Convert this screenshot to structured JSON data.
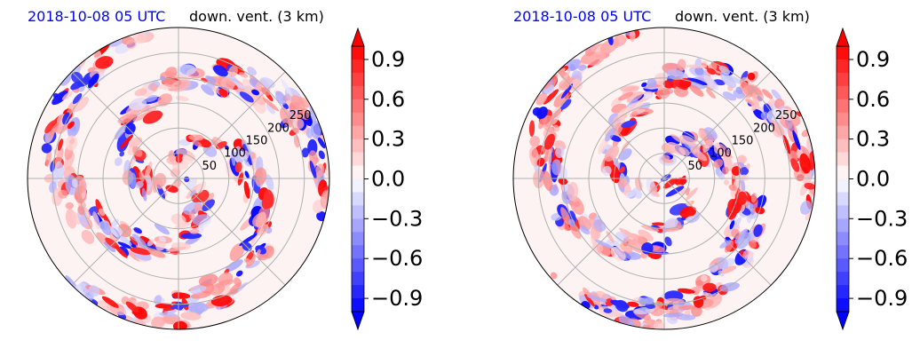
{
  "chart_data": [
    {
      "type": "heatmap",
      "projection": "polar",
      "panel": "left",
      "title_left": "2018-10-08 05 UTC",
      "title_right": "down. vent. (3 km)",
      "title_left_color": "#0000ff",
      "radial_ticks": [
        "50",
        "100",
        "150",
        "200",
        "250"
      ],
      "radial_tick_values": [
        50,
        100,
        150,
        200,
        250
      ],
      "rmax": 300,
      "radial_tick_angle_deg": 30,
      "azimuth_grid_step_deg": 45,
      "grid": true,
      "colorbar": {
        "ticks": [
          "0.9",
          "0.6",
          "0.3",
          "0.0",
          "−0.3",
          "−0.6",
          "−0.9"
        ],
        "tick_values": [
          0.9,
          0.6,
          0.3,
          0.0,
          -0.3,
          -0.6,
          -0.9
        ],
        "range": [
          -1.0,
          1.0
        ],
        "extend": "both",
        "colormap": "bwr"
      }
    },
    {
      "type": "heatmap",
      "projection": "polar",
      "panel": "right",
      "title_left": "2018-10-08 05 UTC",
      "title_right": "down. vent. (3 km)",
      "title_left_color": "#0000ff",
      "radial_ticks": [
        "50",
        "100",
        "150",
        "200",
        "250"
      ],
      "radial_tick_values": [
        50,
        100,
        150,
        200,
        250
      ],
      "rmax": 300,
      "radial_tick_angle_deg": 30,
      "azimuth_grid_step_deg": 45,
      "grid": true,
      "colorbar": {
        "ticks": [
          "0.9",
          "0.6",
          "0.3",
          "0.0",
          "−0.3",
          "−0.6",
          "−0.9"
        ],
        "tick_values": [
          0.9,
          0.6,
          0.3,
          0.0,
          -0.3,
          -0.6,
          -0.9
        ],
        "range": [
          -1.0,
          1.0
        ],
        "extend": "both",
        "colormap": "bwr"
      }
    }
  ]
}
